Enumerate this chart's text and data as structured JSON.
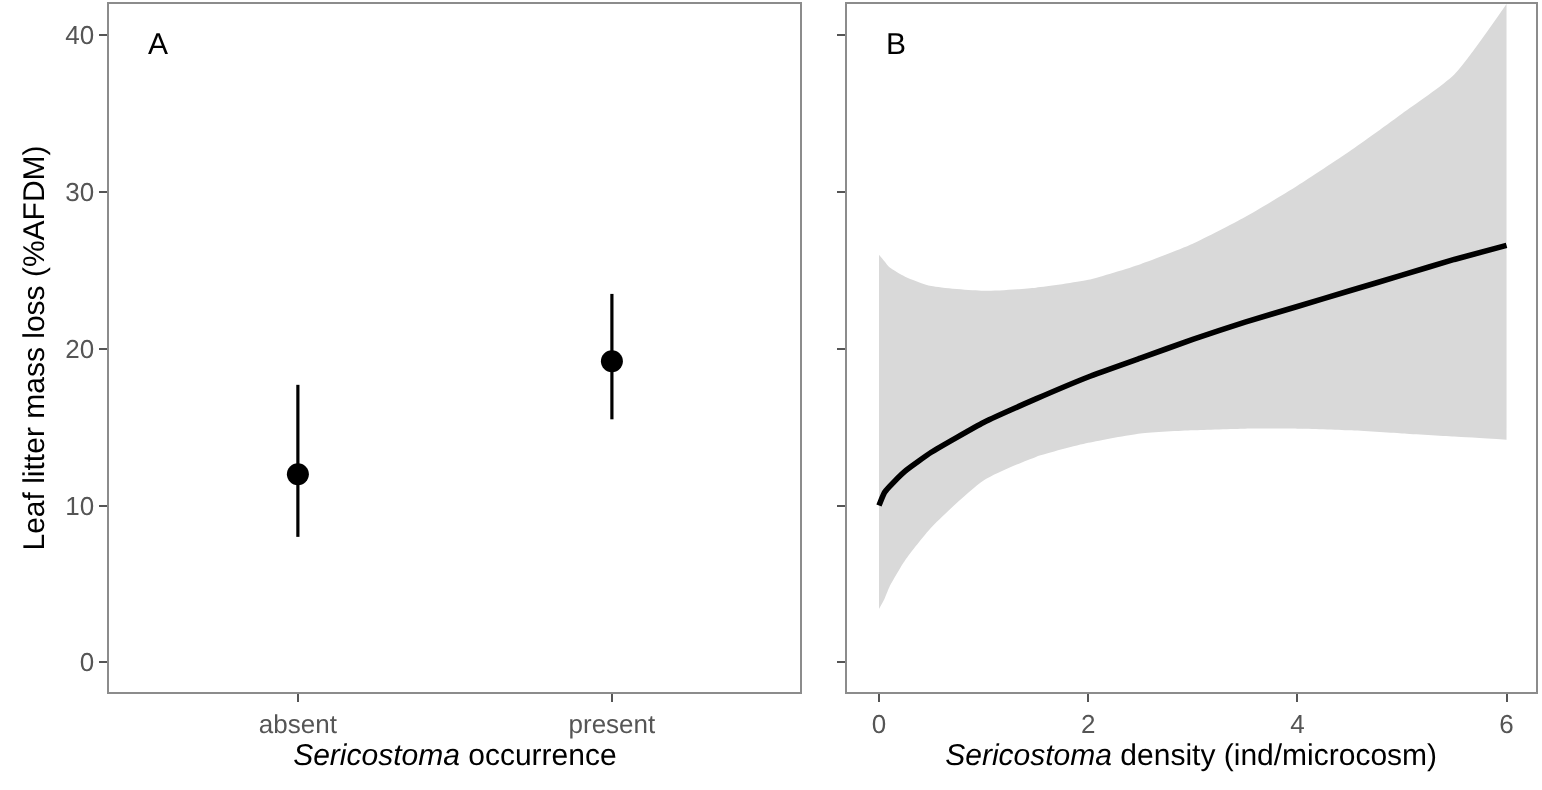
{
  "chart_data": [
    {
      "type": "scatter",
      "categories": [
        "absent",
        "present"
      ],
      "xlabel": "Sericostoma occurrence",
      "ylabel": "Leaf litter mass loss (%AFDM)",
      "annotations": [
        "A"
      ],
      "series": [
        {
          "color": "#000000",
          "values": [
            12.0,
            19.2
          ],
          "errors": [
            [
              8.0,
              17.7
            ],
            [
              15.5,
              23.5
            ]
          ]
        }
      ],
      "ylim": [
        -1.9,
        42
      ],
      "yticks": [
        0,
        10,
        20,
        30,
        40
      ],
      "marker": "circle"
    },
    {
      "type": "line",
      "xlabel": "Sericostoma density (ind/microcosm)",
      "annotations": [
        "B"
      ],
      "x": [
        0,
        0.05,
        0.1,
        0.25,
        0.5,
        1,
        1.5,
        2,
        2.5,
        3,
        3.5,
        4,
        4.5,
        5,
        5.5,
        6
      ],
      "series": [
        {
          "color": "#000000",
          "values": [
            10.0,
            10.8,
            11.2,
            12.2,
            13.4,
            15.3,
            16.8,
            18.2,
            19.4,
            20.6,
            21.7,
            22.7,
            23.7,
            24.7,
            25.7,
            26.6
          ],
          "lower": [
            3.4,
            4.0,
            4.8,
            6.5,
            8.6,
            11.6,
            13.1,
            14.0,
            14.6,
            14.8,
            14.9,
            14.9,
            14.8,
            14.6,
            14.4,
            14.2
          ],
          "upper": [
            26.0,
            25.6,
            25.2,
            24.6,
            24.0,
            23.7,
            23.9,
            24.4,
            25.4,
            26.7,
            28.4,
            30.4,
            32.6,
            35.0,
            37.5,
            42.0
          ]
        }
      ],
      "xlim": [
        -0.31,
        6.28
      ],
      "xticks": [
        0,
        2,
        4,
        6
      ],
      "ylim": [
        -1.9,
        42
      ],
      "yticks": [
        0,
        10,
        20,
        30,
        40
      ],
      "tick_labels": "x",
      "line_style": "solid",
      "marker": "none"
    }
  ]
}
